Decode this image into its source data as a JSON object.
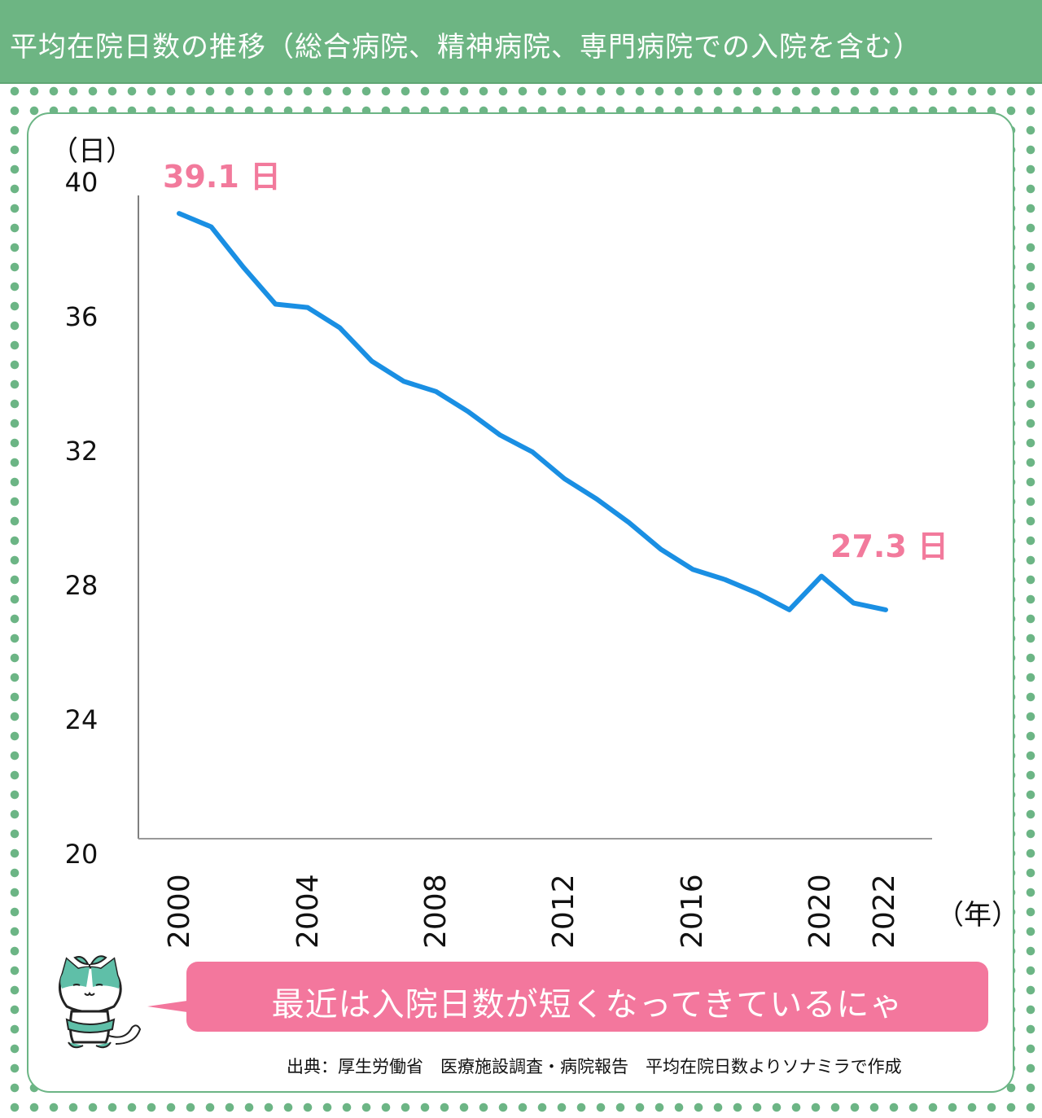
{
  "title": "平均在院日数の推移（総合病院、精神病院、専門病院での入院を含む）",
  "y_unit": "（日）",
  "x_unit": "（年）",
  "y_ticks": [
    "40",
    "36",
    "32",
    "28",
    "24",
    "20"
  ],
  "x_ticks": [
    "2000",
    "2004",
    "2008",
    "2012",
    "2016",
    "2020",
    "2022"
  ],
  "annotations": {
    "start": "39.1 日",
    "end": "27.3 日"
  },
  "speech_bubble": "最近は入院日数が短くなってきているにゃ",
  "source": "出典：厚生労働省　医療施設調査・病院報告　平均在院日数よりソナミラで作成",
  "colors": {
    "line": "#1a8fe3",
    "accent": "#f27a9c",
    "header": "#6db583",
    "bubble": "#f3779d"
  },
  "chart_data": {
    "type": "line",
    "title": "平均在院日数の推移（総合病院、精神病院、専門病院での入院を含む）",
    "xlabel": "（年）",
    "ylabel": "（日）",
    "ylim": [
      20,
      40
    ],
    "yticks": [
      20,
      24,
      28,
      32,
      36,
      40
    ],
    "xticks": [
      2000,
      2004,
      2008,
      2012,
      2016,
      2020,
      2022
    ],
    "grid": false,
    "legend": null,
    "x": [
      2000,
      2001,
      2002,
      2003,
      2004,
      2005,
      2006,
      2007,
      2008,
      2009,
      2010,
      2011,
      2012,
      2013,
      2014,
      2015,
      2016,
      2017,
      2018,
      2019,
      2020,
      2021,
      2022
    ],
    "series": [
      {
        "name": "平均在院日数",
        "values": [
          39.1,
          38.7,
          37.5,
          36.4,
          36.3,
          35.7,
          34.7,
          34.1,
          33.8,
          33.2,
          32.5,
          32.0,
          31.2,
          30.6,
          29.9,
          29.1,
          28.5,
          28.2,
          27.8,
          27.3,
          28.3,
          27.5,
          27.3
        ]
      }
    ],
    "annotations": [
      {
        "x": 2000,
        "text": "39.1 日"
      },
      {
        "x": 2022,
        "text": "27.3 日"
      }
    ]
  }
}
